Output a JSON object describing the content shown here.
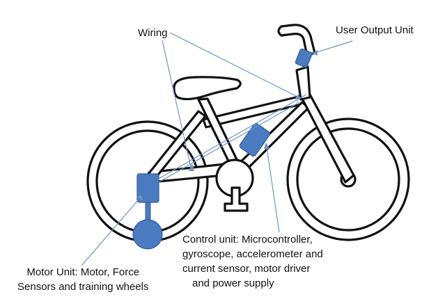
{
  "labels": {
    "wiring": "Wiring",
    "user_output_unit": "User Output Unit",
    "control_unit": [
      "Control unit: Microcontroller,",
      "gyroscope, accelerometer and",
      "current sensor, motor driver",
      "and power supply"
    ],
    "motor_unit": [
      "Motor Unit: Motor, Force",
      "Sensors and training wheels"
    ]
  },
  "colors": {
    "component_fill": "#4a7bc0",
    "component_stroke": "#2f5d99",
    "pointer_line": "#6f95c4",
    "outline": "#111111"
  }
}
